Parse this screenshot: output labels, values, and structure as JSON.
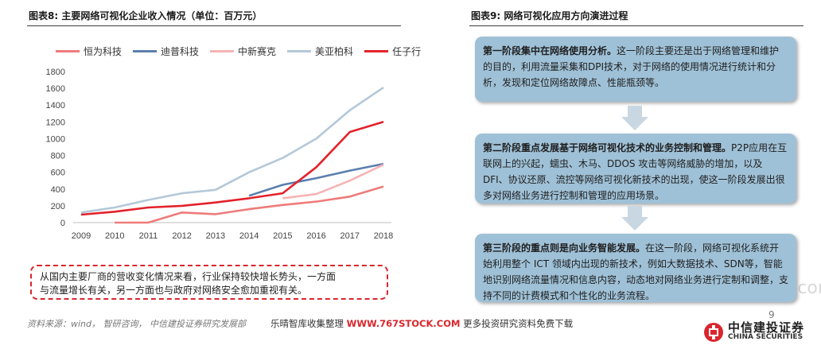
{
  "left_figure": {
    "title": "图表8: 主要网络可视化企业收入情况（单位：百万元）"
  },
  "right_figure": {
    "title": "图表9: 网络可视化应用方向演进过程"
  },
  "chart_data": {
    "type": "line",
    "title": "",
    "xlabel": "",
    "ylabel": "",
    "x": [
      "2009",
      "2010",
      "2011",
      "2012",
      "2013",
      "2014",
      "2015",
      "2016",
      "2017",
      "2018"
    ],
    "ylim": [
      0,
      1800
    ],
    "yticks": [
      "0",
      "200",
      "400",
      "600",
      "800",
      "1000",
      "1200",
      "1400",
      "1600",
      "1800"
    ],
    "grid": false,
    "legend_position": "top",
    "series": [
      {
        "name": "恒为科技",
        "color": "#ef7b7b",
        "values": [
          null,
          0,
          0,
          120,
          100,
          160,
          210,
          250,
          310,
          430
        ]
      },
      {
        "name": "迪普科技",
        "color": "#5b7fae",
        "values": [
          null,
          null,
          null,
          null,
          null,
          320,
          450,
          530,
          620,
          700
        ]
      },
      {
        "name": "中新赛克",
        "color": "#f6b4b4",
        "values": [
          null,
          null,
          null,
          null,
          null,
          null,
          290,
          340,
          500,
          690
        ]
      },
      {
        "name": "美亚柏科",
        "color": "#b4c8d8",
        "values": [
          120,
          180,
          270,
          350,
          390,
          600,
          770,
          1000,
          1340,
          1610
        ]
      },
      {
        "name": "任子行",
        "color": "#e3222b",
        "values": [
          95,
          130,
          180,
          200,
          240,
          290,
          350,
          660,
          1080,
          1200
        ]
      }
    ]
  },
  "note": {
    "line1": "从国内主要厂商的营收变化情况来看，行业保持较快增长势头，一方面",
    "line2": "与流量增长有关，另一方面也与政府对网络安全愈加重视有关。"
  },
  "source": "资料来源：wind， 智研咨询， 中信建投证券研究发展部",
  "footer": {
    "pre": "乐晴智库收集整理",
    "url": "WWW.767STOCK.COM",
    "post": "更多投资研究资料免费下载"
  },
  "page_number": "9",
  "watermark": "www.767stock.com",
  "logo": {
    "cn": "中信建投证券",
    "en": "CHINA SECURITIES"
  },
  "stages": [
    {
      "bold": "第一阶段集中在网络使用分析。",
      "text": "这一阶段主要还是出于网络管理和维护的目的，利用流量采集和DPI技术，对于网络的使用情况进行统计和分析，发现和定位网络故障点、性能瓶颈等。"
    },
    {
      "bold": "第二阶段重点发展基于网络可视化技术的业务控制和管理。",
      "text": "P2P应用在互联网上的兴起，蠕虫、木马、DDOS 攻击等网络威胁的增加，以及 DFI、协议还原、流控等网络可视化新技术的出现，使这一阶段发展出很多对网络业务进行控制和管理的应用场景。"
    },
    {
      "bold": "第三阶段的重点则是向业务智能发展。",
      "text": "在这一阶段，网络可视化系统开始利用整个 ICT 领域内出现的新技术，例如大数据技术、SDN等，智能地识别网络流量情况和信息内容，动态地对网络业务进行定制和调整，支持不同的计费模式和个性化的业务流程。"
    }
  ]
}
